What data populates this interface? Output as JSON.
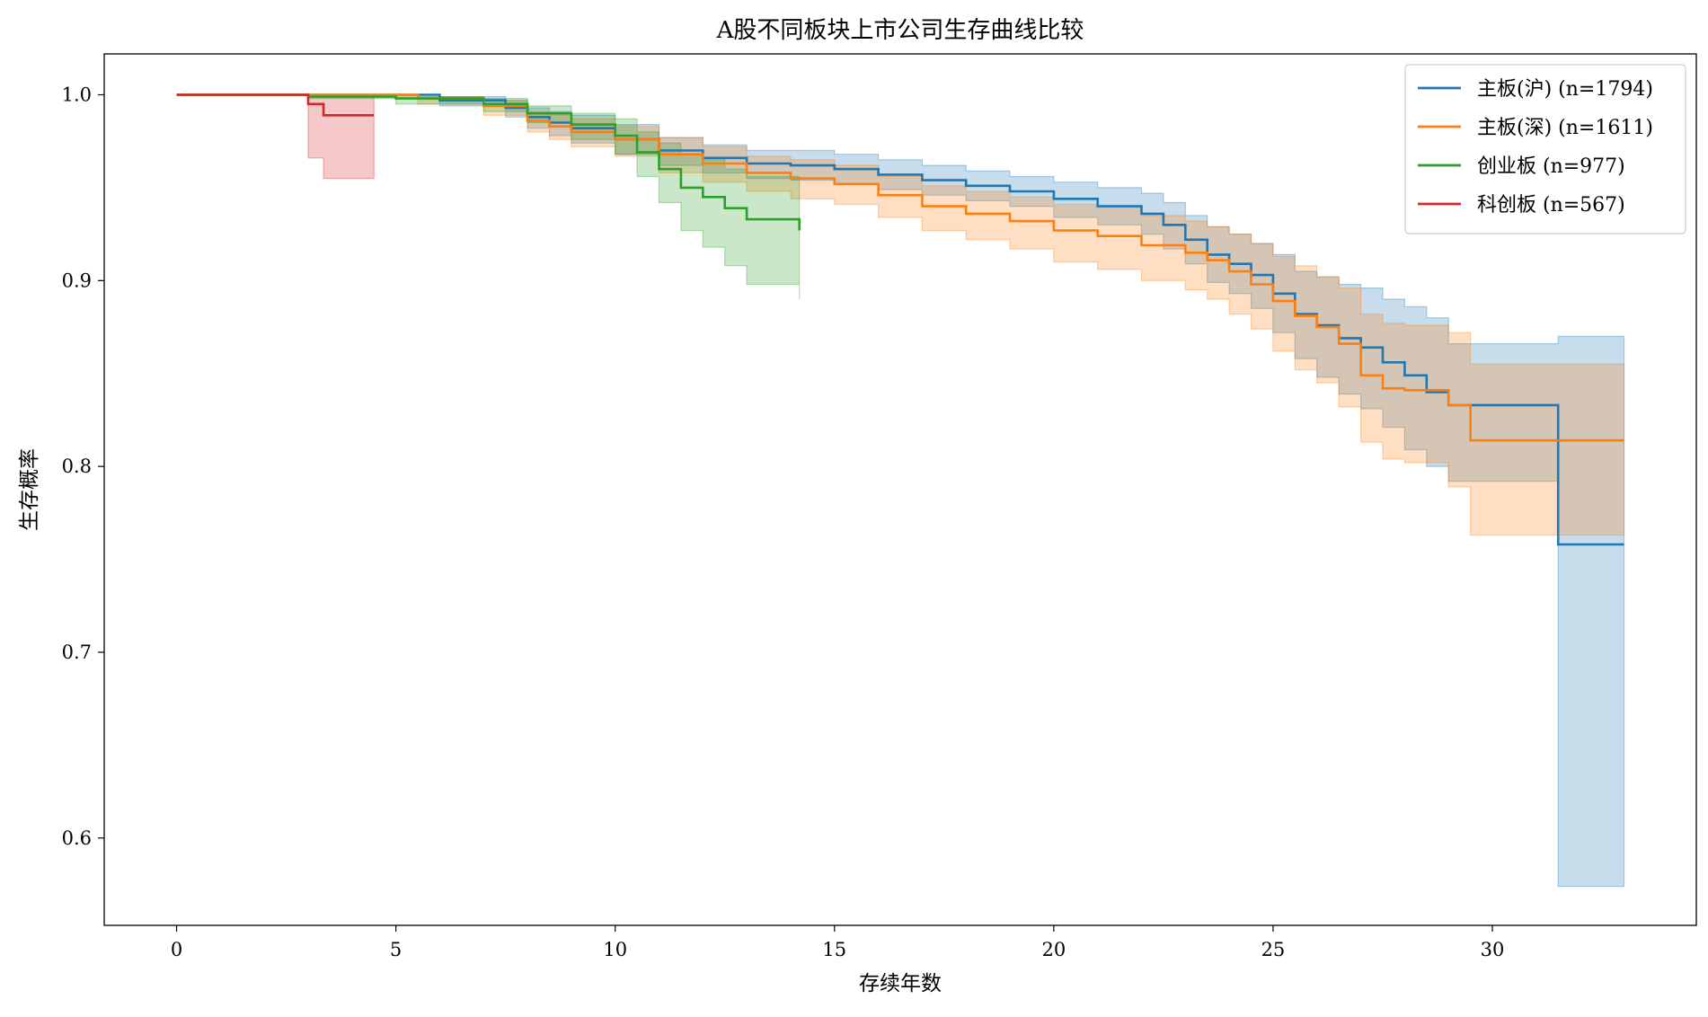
{
  "chart_data": {
    "type": "line",
    "step": true,
    "title": "A股不同板块上市公司生存曲线比较",
    "xlabel": "存续年数",
    "ylabel": "生存概率",
    "xlim": [
      -1.65,
      34.65
    ],
    "ylim": [
      0.553,
      1.022
    ],
    "xticks": [
      0,
      5,
      10,
      15,
      20,
      25,
      30
    ],
    "yticks": [
      0.6,
      0.7,
      0.8,
      0.9,
      1.0
    ],
    "ytick_labels": [
      "0.6",
      "0.7",
      "0.8",
      "0.9",
      "1.0"
    ],
    "grid": false,
    "legend_position": "top-right",
    "series": [
      {
        "name": "主板(沪) (n=1794)",
        "color": "#1f77b4",
        "x": [
          0,
          6,
          7.5,
          8,
          8.5,
          9,
          10,
          11,
          12,
          13,
          14,
          15,
          16,
          17,
          18,
          19,
          20,
          21,
          22,
          22.5,
          23,
          23.5,
          24,
          24.5,
          25,
          25.5,
          26,
          26.5,
          27,
          27.5,
          28,
          28.5,
          29,
          31.5,
          33
        ],
        "y": [
          1.0,
          0.997,
          0.993,
          0.988,
          0.985,
          0.982,
          0.976,
          0.97,
          0.966,
          0.963,
          0.962,
          0.96,
          0.957,
          0.954,
          0.951,
          0.948,
          0.944,
          0.94,
          0.936,
          0.93,
          0.922,
          0.914,
          0.909,
          0.903,
          0.893,
          0.882,
          0.876,
          0.869,
          0.864,
          0.856,
          0.849,
          0.84,
          0.833,
          0.758,
          0.758
        ],
        "ci_lower": [
          1.0,
          0.994,
          0.988,
          0.982,
          0.978,
          0.974,
          0.968,
          0.962,
          0.958,
          0.955,
          0.954,
          0.952,
          0.949,
          0.946,
          0.943,
          0.94,
          0.934,
          0.93,
          0.925,
          0.917,
          0.909,
          0.899,
          0.893,
          0.885,
          0.872,
          0.858,
          0.848,
          0.839,
          0.831,
          0.821,
          0.809,
          0.8,
          0.792,
          0.574,
          0.574
        ],
        "ci_upper": [
          1.0,
          0.999,
          0.997,
          0.993,
          0.991,
          0.989,
          0.984,
          0.977,
          0.973,
          0.97,
          0.97,
          0.968,
          0.965,
          0.962,
          0.959,
          0.956,
          0.953,
          0.95,
          0.947,
          0.942,
          0.935,
          0.929,
          0.925,
          0.92,
          0.914,
          0.905,
          0.902,
          0.898,
          0.896,
          0.89,
          0.886,
          0.88,
          0.866,
          0.87,
          0.87
        ]
      },
      {
        "name": "主板(深) (n=1611)",
        "color": "#ff7f0e",
        "x": [
          0,
          5.5,
          7,
          8,
          8.5,
          9,
          10,
          11,
          12,
          13,
          14,
          15,
          16,
          17,
          18,
          19,
          20,
          21,
          22,
          23,
          23.5,
          24,
          24.5,
          25,
          25.5,
          26,
          26.5,
          27,
          27.5,
          28,
          28.5,
          29,
          29.5,
          33
        ],
        "y": [
          1.0,
          0.998,
          0.994,
          0.986,
          0.983,
          0.98,
          0.976,
          0.968,
          0.963,
          0.958,
          0.955,
          0.952,
          0.946,
          0.94,
          0.936,
          0.932,
          0.927,
          0.924,
          0.919,
          0.915,
          0.911,
          0.905,
          0.898,
          0.889,
          0.881,
          0.875,
          0.866,
          0.849,
          0.842,
          0.841,
          0.841,
          0.833,
          0.814,
          0.814
        ],
        "ci_lower": [
          1.0,
          0.995,
          0.989,
          0.98,
          0.976,
          0.972,
          0.967,
          0.958,
          0.953,
          0.948,
          0.944,
          0.941,
          0.934,
          0.927,
          0.922,
          0.917,
          0.91,
          0.906,
          0.9,
          0.895,
          0.89,
          0.882,
          0.874,
          0.862,
          0.852,
          0.845,
          0.832,
          0.813,
          0.804,
          0.802,
          0.802,
          0.789,
          0.763,
          0.763
        ],
        "ci_upper": [
          1.0,
          0.999,
          0.997,
          0.991,
          0.989,
          0.987,
          0.983,
          0.977,
          0.972,
          0.967,
          0.965,
          0.962,
          0.956,
          0.951,
          0.948,
          0.945,
          0.941,
          0.939,
          0.935,
          0.932,
          0.929,
          0.925,
          0.92,
          0.913,
          0.908,
          0.902,
          0.896,
          0.882,
          0.877,
          0.876,
          0.876,
          0.872,
          0.855,
          0.855
        ]
      },
      {
        "name": "创业板 (n=977)",
        "color": "#2ca02c",
        "x": [
          0,
          3,
          5,
          7,
          8,
          9,
          10,
          10.5,
          11,
          11.5,
          12,
          12.5,
          13,
          14.2
        ],
        "y": [
          1.0,
          0.999,
          0.998,
          0.995,
          0.99,
          0.984,
          0.978,
          0.969,
          0.96,
          0.95,
          0.945,
          0.939,
          0.933,
          0.927
        ],
        "ci_lower": [
          1.0,
          0.998,
          0.995,
          0.991,
          0.985,
          0.976,
          0.968,
          0.956,
          0.942,
          0.927,
          0.918,
          0.908,
          0.898,
          0.89
        ],
        "ci_upper": [
          1.0,
          1.0,
          0.999,
          0.998,
          0.994,
          0.99,
          0.987,
          0.98,
          0.974,
          0.968,
          0.965,
          0.96,
          0.956,
          0.951
        ]
      },
      {
        "name": "科创板 (n=567)",
        "color": "#d62728",
        "x": [
          0,
          3,
          3.35,
          4.5
        ],
        "y": [
          1.0,
          0.995,
          0.989,
          0.989
        ],
        "ci_lower": [
          1.0,
          0.966,
          0.955,
          0.955
        ],
        "ci_upper": [
          1.0,
          1.0,
          1.0,
          1.0
        ]
      }
    ]
  }
}
